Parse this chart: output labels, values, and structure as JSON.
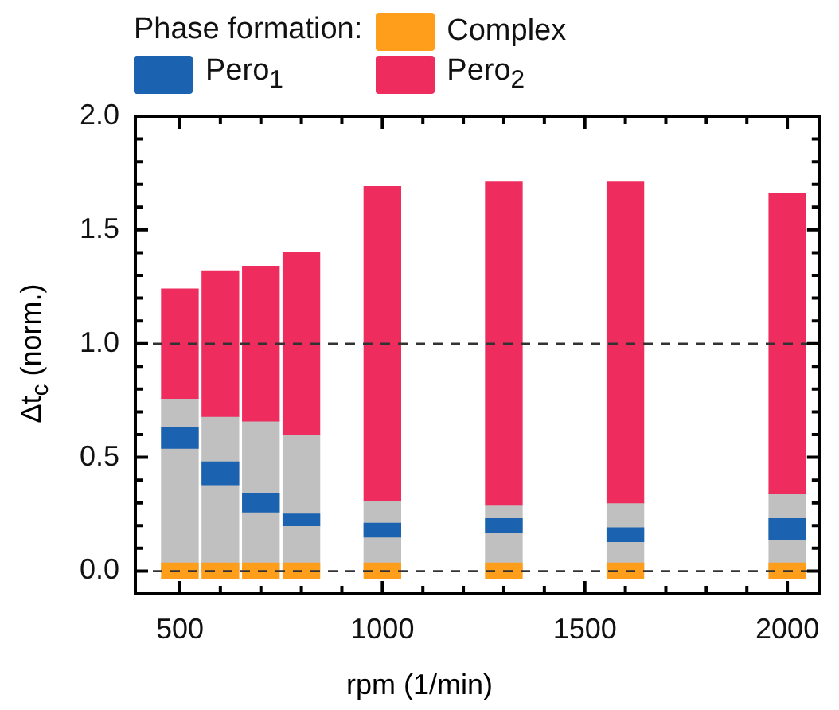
{
  "chart_data": {
    "type": "bar",
    "xlabel": "rpm (1/min)",
    "ylabel": "Δt$_{c}$ (norm.)",
    "legend_title": "Phase formation:",
    "legend": "top",
    "grid": false,
    "x": [
      500,
      600,
      700,
      800,
      1000,
      1300,
      1600,
      2000
    ],
    "xlim": [
      390,
      2080
    ],
    "xticks": [
      500,
      {
        "value": 600,
        "label": null
      },
      {
        "value": 700,
        "label": null
      },
      {
        "value": 800,
        "label": null
      },
      {
        "value": 900,
        "label": null
      },
      1000,
      {
        "value": 1100,
        "label": null
      },
      {
        "value": 1200,
        "label": null
      },
      {
        "value": 1300,
        "label": null
      },
      {
        "value": 1400,
        "label": null
      },
      1500,
      {
        "value": 1600,
        "label": null
      },
      {
        "value": 1700,
        "label": null
      },
      {
        "value": 1800,
        "label": null
      },
      {
        "value": 1900,
        "label": null
      },
      2000
    ],
    "ylim": [
      -0.1,
      2.0
    ],
    "yticks": [
      {
        "value": 0,
        "label": "0.0"
      },
      {
        "value": 0.1,
        "label": null
      },
      {
        "value": 0.2,
        "label": null
      },
      {
        "value": 0.3,
        "label": null
      },
      {
        "value": 0.4,
        "label": null
      },
      {
        "value": 0.5,
        "label": "0.5"
      },
      {
        "value": 0.6,
        "label": null
      },
      {
        "value": 0.7,
        "label": null
      },
      {
        "value": 0.8,
        "label": null
      },
      {
        "value": 0.9,
        "label": null
      },
      {
        "value": 1,
        "label": "1.0"
      },
      {
        "value": 1.1,
        "label": null
      },
      {
        "value": 1.2,
        "label": null
      },
      {
        "value": 1.3,
        "label": null
      },
      {
        "value": 1.4,
        "label": null
      },
      {
        "value": 1.5,
        "label": "1.5"
      },
      {
        "value": 1.6,
        "label": null
      },
      {
        "value": 1.7,
        "label": null
      },
      {
        "value": 1.8,
        "label": null
      },
      {
        "value": 1.9,
        "label": null
      },
      {
        "value": 2,
        "label": "2.0"
      }
    ],
    "series": [
      {
        "color": "#c0c0c0",
        "base": [
          0,
          0,
          0,
          0,
          0,
          0,
          0,
          0
        ],
        "values": [
          0.76,
          0.68,
          0.66,
          0.6,
          0.31,
          0.29,
          0.3,
          0.34
        ]
      },
      {
        "name": "Pero$_{2}$",
        "color": "#ee2c5e",
        "base": [
          0.76,
          0.68,
          0.66,
          0.6,
          0.31,
          0.29,
          0.3,
          0.34
        ],
        "values": [
          0.48,
          0.64,
          0.68,
          0.8,
          1.38,
          1.42,
          1.41,
          1.32
        ]
      },
      {
        "name": "Pero$_{1}$",
        "color": "#1b63b0",
        "base": [
          0.54,
          0.38,
          0.26,
          0.2,
          0.15,
          0.17,
          0.13,
          0.14
        ],
        "values": [
          0.09,
          0.1,
          0.08,
          0.05,
          0.06,
          0.06,
          0.06,
          0.09
        ]
      },
      {
        "name": "Complex",
        "color": "#ff9e1b",
        "base": [
          -0.035,
          -0.035,
          -0.035,
          -0.035,
          -0.035,
          -0.035,
          -0.035,
          -0.035
        ],
        "values": [
          0.07,
          0.07,
          0.07,
          0.07,
          0.07,
          0.07,
          0.07,
          0.07
        ]
      }
    ],
    "ref_lines": [
      {
        "axis": "y",
        "value": 0,
        "line_style": "dashed",
        "color": "#333333"
      },
      {
        "axis": "y",
        "value": 1,
        "line_style": "dashed",
        "color": "#333333"
      }
    ]
  }
}
